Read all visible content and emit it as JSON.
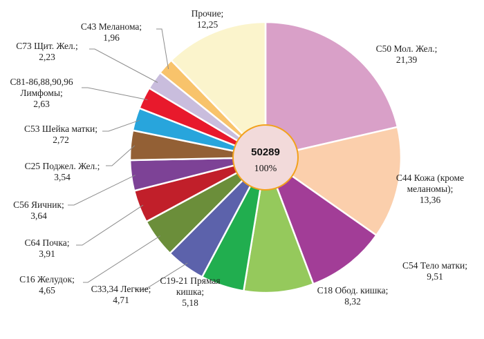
{
  "chart_data": {
    "type": "pie",
    "title": "",
    "center_total": "50289",
    "center_percent": "100%",
    "slices": [
      {
        "label_lines": [
          "С50 Мол. Жел.;"
        ],
        "value": 21.39,
        "value_text": "21,39",
        "color": "#d9a0c8"
      },
      {
        "label_lines": [
          "С44 Кожа (кроме",
          "меланомы);"
        ],
        "value": 13.36,
        "value_text": "13,36",
        "color": "#fbcfac"
      },
      {
        "label_lines": [
          "С54 Тело матки;"
        ],
        "value": 9.51,
        "value_text": "9,51",
        "color": "#a23d97"
      },
      {
        "label_lines": [
          "С18 Обод. кишка;"
        ],
        "value": 8.32,
        "value_text": "8,32",
        "color": "#95c95c"
      },
      {
        "label_lines": [
          "С19-21 Прямая",
          "кишка;"
        ],
        "value": 5.18,
        "value_text": "5,18",
        "color": "#21ae4f"
      },
      {
        "label_lines": [
          "С33,34 Легкие;"
        ],
        "value": 4.71,
        "value_text": "4,71",
        "color": "#5c62ab"
      },
      {
        "label_lines": [
          "С16 Желудок;"
        ],
        "value": 4.65,
        "value_text": "4,65",
        "color": "#6b8e3a"
      },
      {
        "label_lines": [
          "С64 Почка;"
        ],
        "value": 3.91,
        "value_text": "3,91",
        "color": "#c11f2a"
      },
      {
        "label_lines": [
          "С56 Яичник;"
        ],
        "value": 3.64,
        "value_text": "3,64",
        "color": "#7d4296"
      },
      {
        "label_lines": [
          "С25 Поджел. Жел.;"
        ],
        "value": 3.54,
        "value_text": "3,54",
        "color": "#936035"
      },
      {
        "label_lines": [
          "С53 Шейка матки;"
        ],
        "value": 2.72,
        "value_text": "2,72",
        "color": "#28a5dc"
      },
      {
        "label_lines": [
          "С81-86,88,90,96",
          "Лимфомы;"
        ],
        "value": 2.63,
        "value_text": "2,63",
        "color": "#e8192c"
      },
      {
        "label_lines": [
          "С73 Щит. Жел.;"
        ],
        "value": 2.23,
        "value_text": "2,23",
        "color": "#c9bddd"
      },
      {
        "label_lines": [
          "С43 Меланома;"
        ],
        "value": 1.96,
        "value_text": "1,96",
        "color": "#f8c36b"
      },
      {
        "label_lines": [
          "Прочие;"
        ],
        "value": 12.25,
        "value_text": "12,25",
        "color": "#fbf4cc"
      }
    ]
  }
}
